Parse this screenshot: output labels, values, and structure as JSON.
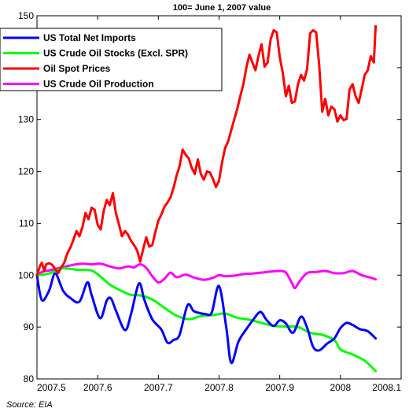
{
  "chart_data": {
    "type": "line",
    "title": "100= June 1, 2007 value",
    "source": "Source: EIA",
    "xlim": [
      2007.5,
      2008.1
    ],
    "ylim": [
      80,
      150
    ],
    "xticks": [
      2007.5,
      2007.6,
      2007.7,
      2007.8,
      2007.9,
      2008,
      2008.1
    ],
    "xtick_labels": [
      "2007.5",
      "2007.6",
      "2007.7",
      "2007.8",
      "2007.9",
      "2008",
      "2008.1"
    ],
    "yticks": [
      80,
      90,
      100,
      110,
      120,
      130,
      140,
      150
    ],
    "ytick_labels": [
      "80",
      "90",
      "100",
      "110",
      "120",
      "130",
      "140",
      "150"
    ],
    "grid": false,
    "legend_position": "top-left",
    "series": [
      {
        "name": "US Total Net Imports",
        "color": "#0000ff",
        "smooth": true,
        "x": [
          2007.5,
          2007.508,
          2007.52,
          2007.53,
          2007.543,
          2007.555,
          2007.57,
          2007.583,
          2007.59,
          2007.604,
          2007.615,
          2007.622,
          2007.63,
          2007.645,
          2007.655,
          2007.668,
          2007.677,
          2007.69,
          2007.705,
          2007.715,
          2007.725,
          2007.735,
          2007.748,
          2007.758,
          2007.768,
          2007.778,
          2007.788,
          2007.8,
          2007.812,
          2007.82,
          2007.832,
          2007.845,
          2007.855,
          2007.868,
          2007.878,
          2007.89,
          2007.9,
          2007.91,
          2007.922,
          2007.935,
          2007.945,
          2007.955,
          2007.965,
          2007.978,
          2007.99,
          2008.0,
          2008.01,
          2008.02,
          2008.032,
          2008.045,
          2008.058
        ],
        "y": [
          100,
          95.2,
          97,
          100.3,
          97,
          95.6,
          94.9,
          98.6,
          96.2,
          91.7,
          95.1,
          95.5,
          93.2,
          89.4,
          92.5,
          98.4,
          95.2,
          91.5,
          89.5,
          87,
          87.5,
          88.5,
          94.2,
          93.1,
          92.7,
          92.5,
          92.8,
          97.9,
          89.8,
          83.1,
          87.2,
          89.6,
          91.2,
          92.9,
          91.4,
          90.2,
          91.3,
          90.7,
          88.9,
          92,
          89.9,
          86.2,
          85.5,
          86.8,
          87.8,
          89.8,
          90.8,
          90.4,
          89.6,
          89.2,
          87.8
        ]
      },
      {
        "name": "US Crude Oil Stocks (Excl. SPR)",
        "color": "#00ff00",
        "smooth": true,
        "x": [
          2007.5,
          2007.52,
          2007.54,
          2007.555,
          2007.57,
          2007.59,
          2007.605,
          2007.62,
          2007.64,
          2007.655,
          2007.67,
          2007.69,
          2007.71,
          2007.73,
          2007.75,
          2007.77,
          2007.79,
          2007.81,
          2007.83,
          2007.85,
          2007.87,
          2007.89,
          2007.91,
          2007.93,
          2007.95,
          2007.97,
          2007.99,
          2008.0,
          2008.02,
          2008.04,
          2008.058
        ],
        "y": [
          100,
          100.3,
          101.3,
          101.2,
          101,
          100.9,
          99.7,
          98.2,
          96.9,
          96.2,
          96.1,
          95.3,
          93.7,
          92.2,
          91.5,
          92.1,
          92.3,
          92.6,
          91.8,
          91.4,
          90.8,
          90.2,
          90.1,
          90,
          88.9,
          88.5,
          87.5,
          85.7,
          84.7,
          83.5,
          81.5
        ]
      },
      {
        "name": "Oil Spot Prices",
        "color": "#ff0000",
        "smooth": false,
        "x": [
          2007.5,
          2007.505,
          2007.508,
          2007.512,
          2007.515,
          2007.52,
          2007.525,
          2007.53,
          2007.535,
          2007.54,
          2007.545,
          2007.55,
          2007.555,
          2007.56,
          2007.565,
          2007.57,
          2007.575,
          2007.58,
          2007.585,
          2007.59,
          2007.595,
          2007.6,
          2007.605,
          2007.61,
          2007.615,
          2007.62,
          2007.625,
          2007.63,
          2007.635,
          2007.64,
          2007.645,
          2007.65,
          2007.655,
          2007.66,
          2007.665,
          2007.67,
          2007.675,
          2007.68,
          2007.685,
          2007.69,
          2007.695,
          2007.7,
          2007.705,
          2007.71,
          2007.715,
          2007.72,
          2007.725,
          2007.73,
          2007.735,
          2007.74,
          2007.745,
          2007.75,
          2007.755,
          2007.76,
          2007.765,
          2007.77,
          2007.775,
          2007.78,
          2007.785,
          2007.79,
          2007.795,
          2007.8,
          2007.805,
          2007.81,
          2007.815,
          2007.82,
          2007.825,
          2007.83,
          2007.835,
          2007.84,
          2007.845,
          2007.85,
          2007.855,
          2007.86,
          2007.865,
          2007.87,
          2007.875,
          2007.88,
          2007.885,
          2007.89,
          2007.895,
          2007.9,
          2007.905,
          2007.91,
          2007.915,
          2007.92,
          2007.925,
          2007.93,
          2007.935,
          2007.94,
          2007.945,
          2007.95,
          2007.955,
          2007.96,
          2007.965,
          2007.97,
          2007.975,
          2007.98,
          2007.985,
          2007.99,
          2007.995,
          2008.0,
          2008.005,
          2008.01,
          2008.015,
          2008.02,
          2008.025,
          2008.03,
          2008.035,
          2008.04,
          2008.045,
          2008.05,
          2008.055,
          2008.058
        ],
        "y": [
          100,
          101.8,
          102.4,
          100.8,
          102.1,
          102.3,
          102,
          101.2,
          100.4,
          101.5,
          102.4,
          104.2,
          105.3,
          106.8,
          108.5,
          107.5,
          109.3,
          112,
          110.8,
          113,
          112.6,
          109.7,
          108.8,
          112.4,
          114.5,
          113.5,
          115.8,
          112,
          109.8,
          107.5,
          108.5,
          107.8,
          106.6,
          105.8,
          104.8,
          102.6,
          105,
          107.3,
          105.5,
          105.8,
          108.3,
          110.5,
          111.7,
          113.2,
          114,
          115,
          116.8,
          119.2,
          121,
          124.2,
          123.2,
          122.5,
          120.7,
          119.5,
          122.3,
          119.5,
          118.4,
          120,
          119.8,
          118.5,
          117,
          118.2,
          121.8,
          124.5,
          125.8,
          127.9,
          130,
          132,
          134.5,
          136.8,
          140,
          142.5,
          141,
          139.5,
          142.3,
          144.5,
          140.2,
          141,
          145.5,
          147.2,
          146.8,
          142,
          139,
          134.5,
          136.5,
          133.2,
          133.5,
          136.8,
          138.6,
          137.5,
          139.7,
          146.6,
          147.2,
          146.8,
          140.5,
          131.5,
          134,
          130.8,
          132.5,
          132,
          129.6,
          130.8,
          129.9,
          130.1,
          135.8,
          136.8,
          134.5,
          133.2,
          135.8,
          138.6,
          139.5,
          142.2,
          141,
          148
        ]
      },
      {
        "name": "US Crude Oil Production",
        "color": "#ff00ff",
        "smooth": true,
        "x": [
          2007.5,
          2007.51,
          2007.52,
          2007.53,
          2007.545,
          2007.56,
          2007.575,
          2007.59,
          2007.605,
          2007.62,
          2007.635,
          2007.65,
          2007.66,
          2007.67,
          2007.68,
          2007.69,
          2007.7,
          2007.71,
          2007.72,
          2007.73,
          2007.745,
          2007.76,
          2007.775,
          2007.79,
          2007.8,
          2007.81,
          2007.825,
          2007.84,
          2007.855,
          2007.87,
          2007.885,
          2007.9,
          2007.91,
          2007.92,
          2007.925,
          2007.932,
          2007.945,
          2007.96,
          2007.975,
          2007.99,
          2008.005,
          2008.02,
          2008.035,
          2008.05,
          2008.058
        ],
        "y": [
          100,
          100.7,
          100.9,
          101.2,
          101.6,
          102,
          102.2,
          102.1,
          102.2,
          101.7,
          101.3,
          101.7,
          101.5,
          102.1,
          101.4,
          99.8,
          98.6,
          99.3,
          100.5,
          99.6,
          100.1,
          99.5,
          99.1,
          99.5,
          100,
          99.8,
          99.9,
          100.2,
          100.3,
          100.5,
          100.7,
          100.8,
          100.5,
          98.5,
          97.5,
          98.7,
          100.4,
          100.6,
          100.8,
          100.4,
          100.4,
          100.8,
          100,
          99.5,
          99.2
        ]
      }
    ]
  }
}
